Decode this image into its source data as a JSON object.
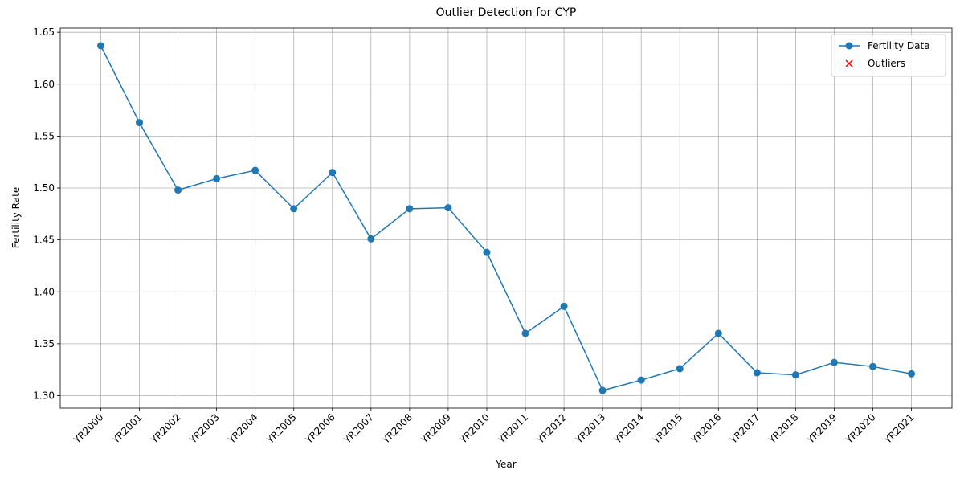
{
  "chart_data": {
    "type": "line",
    "title": "Outlier Detection for CYP",
    "x_label": "Year",
    "y_label": "Fertility Rate",
    "categories": [
      "YR2000",
      "YR2001",
      "YR2002",
      "YR2003",
      "YR2004",
      "YR2005",
      "YR2006",
      "YR2007",
      "YR2008",
      "YR2009",
      "YR2010",
      "YR2011",
      "YR2012",
      "YR2013",
      "YR2014",
      "YR2015",
      "YR2016",
      "YR2017",
      "YR2018",
      "YR2019",
      "YR2020",
      "YR2021"
    ],
    "series": [
      {
        "name": "Fertility Data",
        "color": "#1f77b4",
        "marker": "o",
        "values": [
          1.637,
          1.563,
          1.498,
          1.509,
          1.517,
          1.48,
          1.515,
          1.451,
          1.48,
          1.481,
          1.438,
          1.36,
          1.386,
          1.305,
          1.315,
          1.326,
          1.36,
          1.322,
          1.32,
          1.332,
          1.328,
          1.321
        ]
      },
      {
        "name": "Outliers",
        "color": "red",
        "marker": "x",
        "values": [
          null,
          null,
          null,
          null,
          null,
          null,
          null,
          null,
          null,
          null,
          null,
          null,
          null,
          null,
          null,
          null,
          null,
          null,
          null,
          null,
          null,
          null
        ]
      }
    ],
    "ylim": [
      1.288,
      1.654
    ],
    "yticks": [
      {
        "value": 1.3,
        "label": "1.30"
      },
      1.35,
      {
        "value": 1.4,
        "label": "1.40"
      },
      1.45,
      {
        "value": 1.5,
        "label": "1.50"
      },
      1.55,
      {
        "value": 1.6,
        "label": "1.60"
      },
      1.65
    ],
    "grid": true,
    "legend": "upper right"
  }
}
